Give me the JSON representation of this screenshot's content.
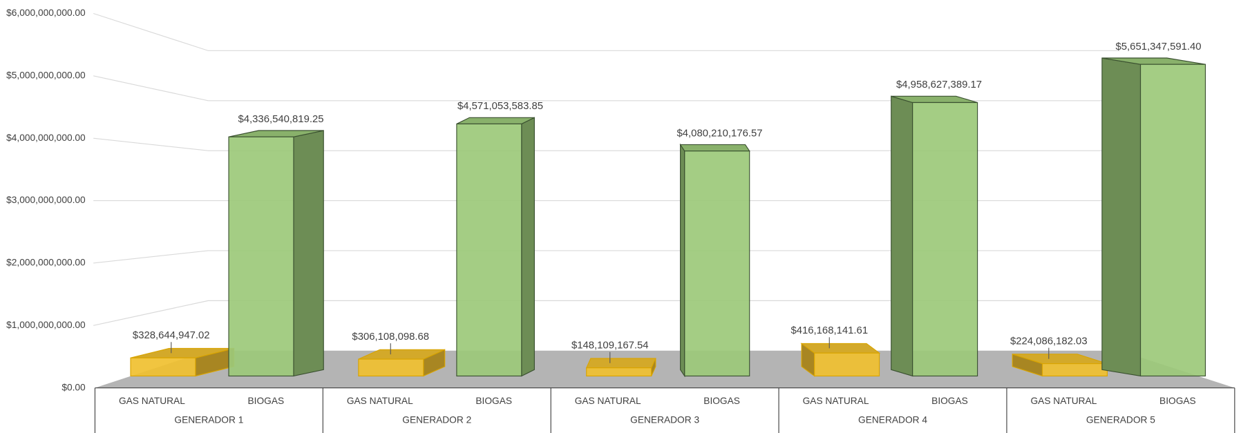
{
  "chart_data": {
    "type": "bar3d",
    "groups": [
      "GENERADOR 1",
      "GENERADOR 2",
      "GENERADOR 3",
      "GENERADOR 4",
      "GENERADOR 5"
    ],
    "categories": [
      "GAS NATURAL",
      "BIOGAS",
      "GAS NATURAL",
      "BIOGAS",
      "GAS NATURAL",
      "BIOGAS",
      "GAS NATURAL",
      "BIOGAS",
      "GAS NATURAL",
      "BIOGAS"
    ],
    "values": [
      328644947.02,
      4336540819.25,
      306108098.68,
      4571053583.85,
      148109167.54,
      4080210176.57,
      416168141.61,
      4958627389.17,
      224086182.03,
      5651347591.4
    ],
    "value_labels": [
      "$328,644,947.02",
      "$4,336,540,819.25",
      "$306,108,098.68",
      "$4,571,053,583.85",
      "$148,109,167.54",
      "$4,080,210,176.57",
      "$416,168,141.61",
      "$4,958,627,389.17",
      "$224,086,182.03",
      "$5,651,347,591.40"
    ],
    "colors": [
      "#f0c030",
      "#9cc97a"
    ],
    "ylim": [
      0,
      6000000000
    ],
    "yticks": [
      {
        "value": 0,
        "label": "$0.00"
      },
      {
        "value": 1000000000,
        "label": "$1,000,000,000.00"
      },
      {
        "value": 2000000000,
        "label": "$2,000,000,000.00"
      },
      {
        "value": 3000000000,
        "label": "$3,000,000,000.00"
      },
      {
        "value": 4000000000,
        "label": "$4,000,000,000.00"
      },
      {
        "value": 5000000000,
        "label": "$5,000,000,000.00"
      },
      {
        "value": 6000000000,
        "label": "$6,000,000,000.00"
      }
    ],
    "grid": true
  }
}
